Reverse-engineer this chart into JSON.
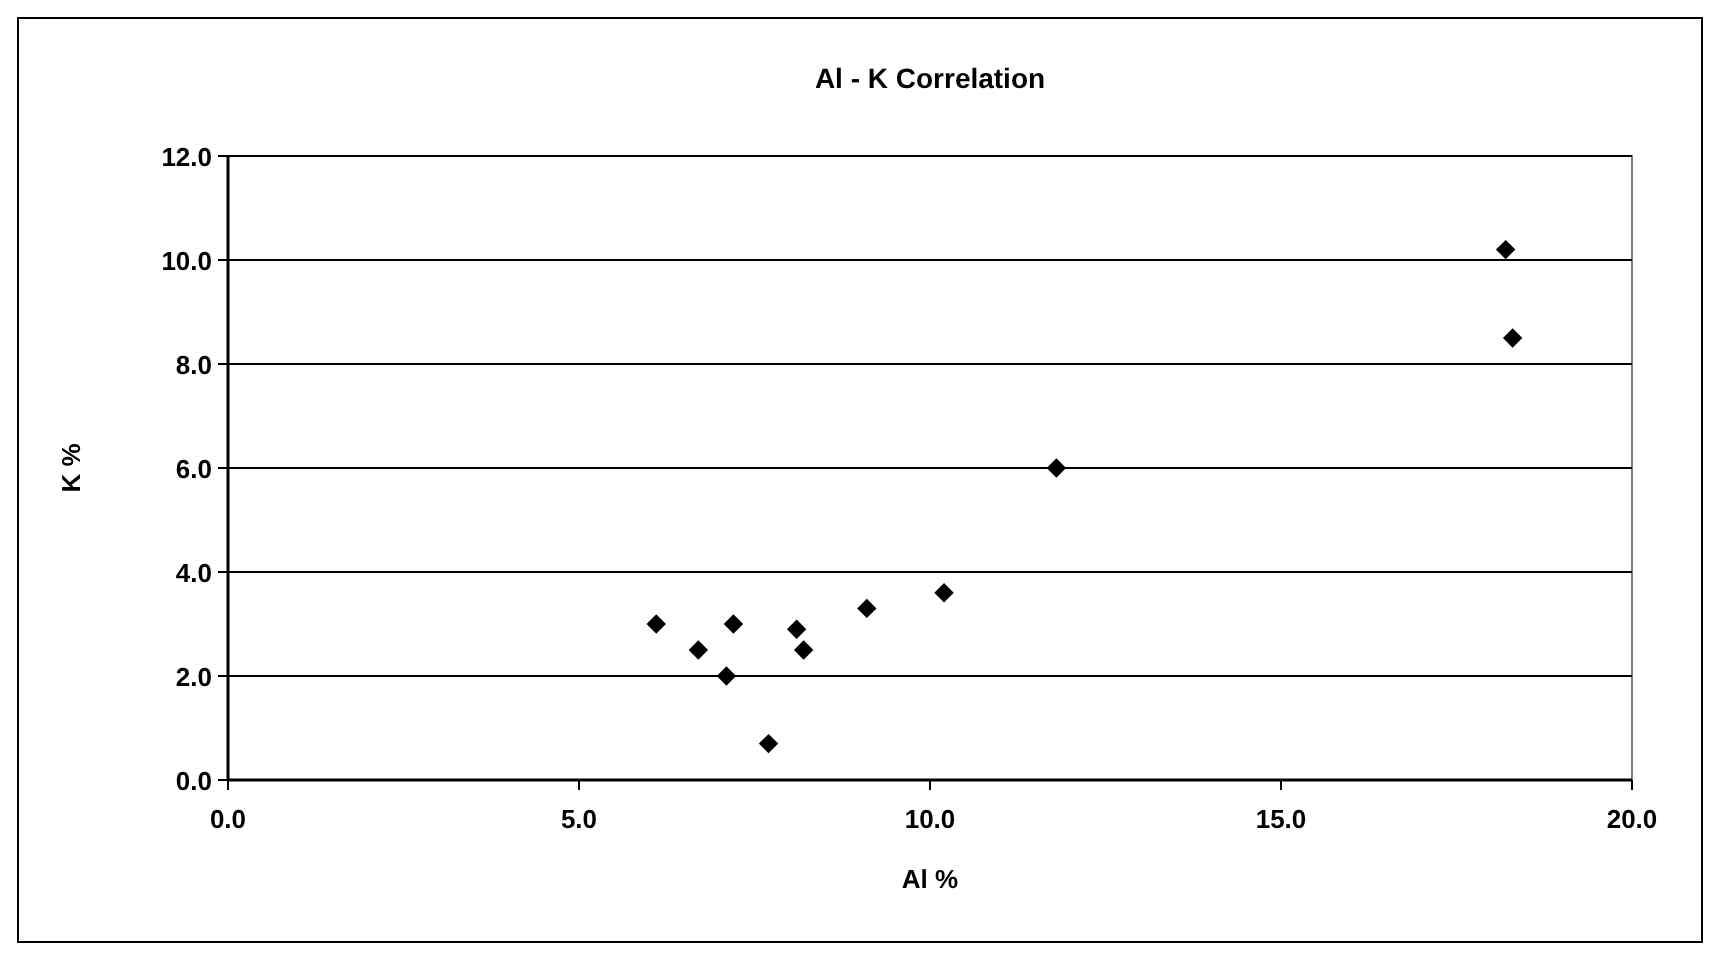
{
  "chart_data": {
    "type": "scatter",
    "title": "Al - K Correlation",
    "xlabel": "Al %",
    "ylabel": "K %",
    "x": [
      6.1,
      6.7,
      7.2,
      7.1,
      8.1,
      8.2,
      7.7,
      9.1,
      10.2,
      11.8,
      18.2,
      18.3
    ],
    "values": [
      3.0,
      2.5,
      3.0,
      2.0,
      2.9,
      2.5,
      0.7,
      3.3,
      3.6,
      6.0,
      10.2,
      8.5
    ],
    "color": "#000000",
    "marker": "diamond",
    "grid": "y",
    "xlim": [
      0,
      20
    ],
    "xticks": [
      {
        "value": 0,
        "label": "0.0"
      },
      {
        "value": 5,
        "label": "5.0"
      },
      {
        "value": 10,
        "label": "10.0"
      },
      {
        "value": 15,
        "label": "15.0"
      },
      {
        "value": 20,
        "label": "20.0"
      }
    ],
    "ylim": [
      0,
      12
    ],
    "yticks": [
      {
        "value": 0,
        "label": "0.0"
      },
      {
        "value": 2,
        "label": "2.0"
      },
      {
        "value": 4,
        "label": "4.0"
      },
      {
        "value": 6,
        "label": "6.0"
      },
      {
        "value": 8,
        "label": "8.0"
      },
      {
        "value": 10,
        "label": "10.0"
      },
      {
        "value": 12,
        "label": "12.0"
      }
    ]
  }
}
